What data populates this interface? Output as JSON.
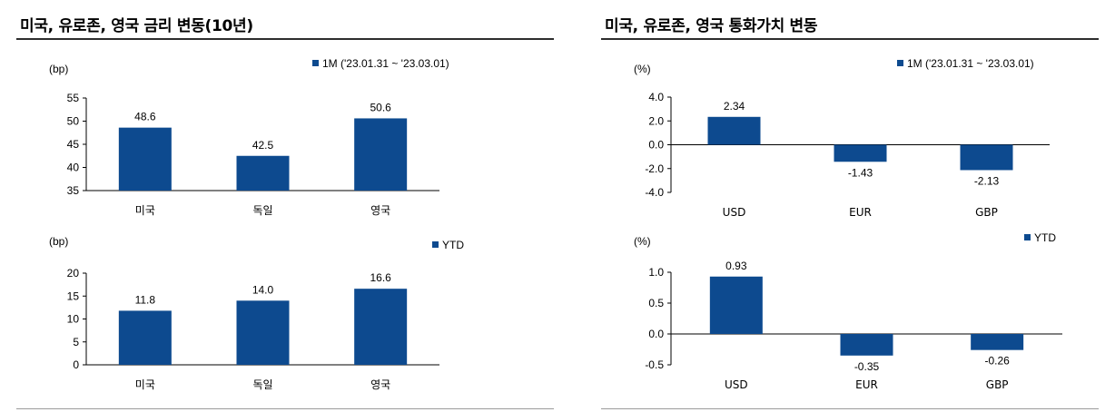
{
  "left_panel": {
    "title": "미국, 유로존, 영국 금리 변동(10년)"
  },
  "right_panel": {
    "title": "미국, 유로존, 영국 통화가치 변동"
  },
  "colors": {
    "bar": "#0d4a8f",
    "axis": "#000000"
  },
  "chart_data": [
    {
      "id": "rates-1m",
      "type": "bar",
      "unit_label": "(bp)",
      "legend": "1M ('23.01.31 ~ '23.03.01)",
      "categories": [
        "미국",
        "독일",
        "영국"
      ],
      "values": [
        48.6,
        42.5,
        50.6
      ],
      "value_labels": [
        "48.6",
        "42.5",
        "50.6"
      ],
      "ylim": [
        35,
        55
      ],
      "yticks": [
        35,
        40,
        45,
        50,
        55
      ],
      "ytick_labels": [
        "35",
        "40",
        "45",
        "50",
        "55"
      ],
      "legend_position": "top-right"
    },
    {
      "id": "rates-ytd",
      "type": "bar",
      "unit_label": "(bp)",
      "legend": "YTD",
      "categories": [
        "미국",
        "독일",
        "영국"
      ],
      "values": [
        11.8,
        14.0,
        16.6
      ],
      "value_labels": [
        "11.8",
        "14.0",
        "16.6"
      ],
      "ylim": [
        0,
        20
      ],
      "yticks": [
        0,
        5,
        10,
        15,
        20
      ],
      "ytick_labels": [
        "0",
        "5",
        "10",
        "15",
        "20"
      ],
      "legend_position": "top-right"
    },
    {
      "id": "fx-1m",
      "type": "bar",
      "unit_label": "(%)",
      "legend": "1M ('23.01.31 ~ '23.03.01)",
      "categories": [
        "USD",
        "EUR",
        "GBP"
      ],
      "values": [
        2.34,
        -1.43,
        -2.13
      ],
      "value_labels": [
        "2.34",
        "-1.43",
        "-2.13"
      ],
      "ylim": [
        -4,
        4
      ],
      "yticks": [
        -4,
        -2,
        0,
        2,
        4
      ],
      "ytick_labels": [
        "-4.0",
        "-2.0",
        "0.0",
        "2.0",
        "4.0"
      ],
      "legend_position": "top-right"
    },
    {
      "id": "fx-ytd",
      "type": "bar",
      "unit_label": "(%)",
      "legend": "YTD",
      "categories": [
        "USD",
        "EUR",
        "GBP"
      ],
      "values": [
        0.93,
        -0.35,
        -0.26
      ],
      "value_labels": [
        "0.93",
        "-0.35",
        "-0.26"
      ],
      "ylim": [
        -0.5,
        1.0
      ],
      "yticks": [
        -0.5,
        0,
        0.5,
        1.0
      ],
      "ytick_labels": [
        "-0.5",
        "0.0",
        "0.5",
        "1.0"
      ],
      "legend_position": "top-right"
    }
  ]
}
